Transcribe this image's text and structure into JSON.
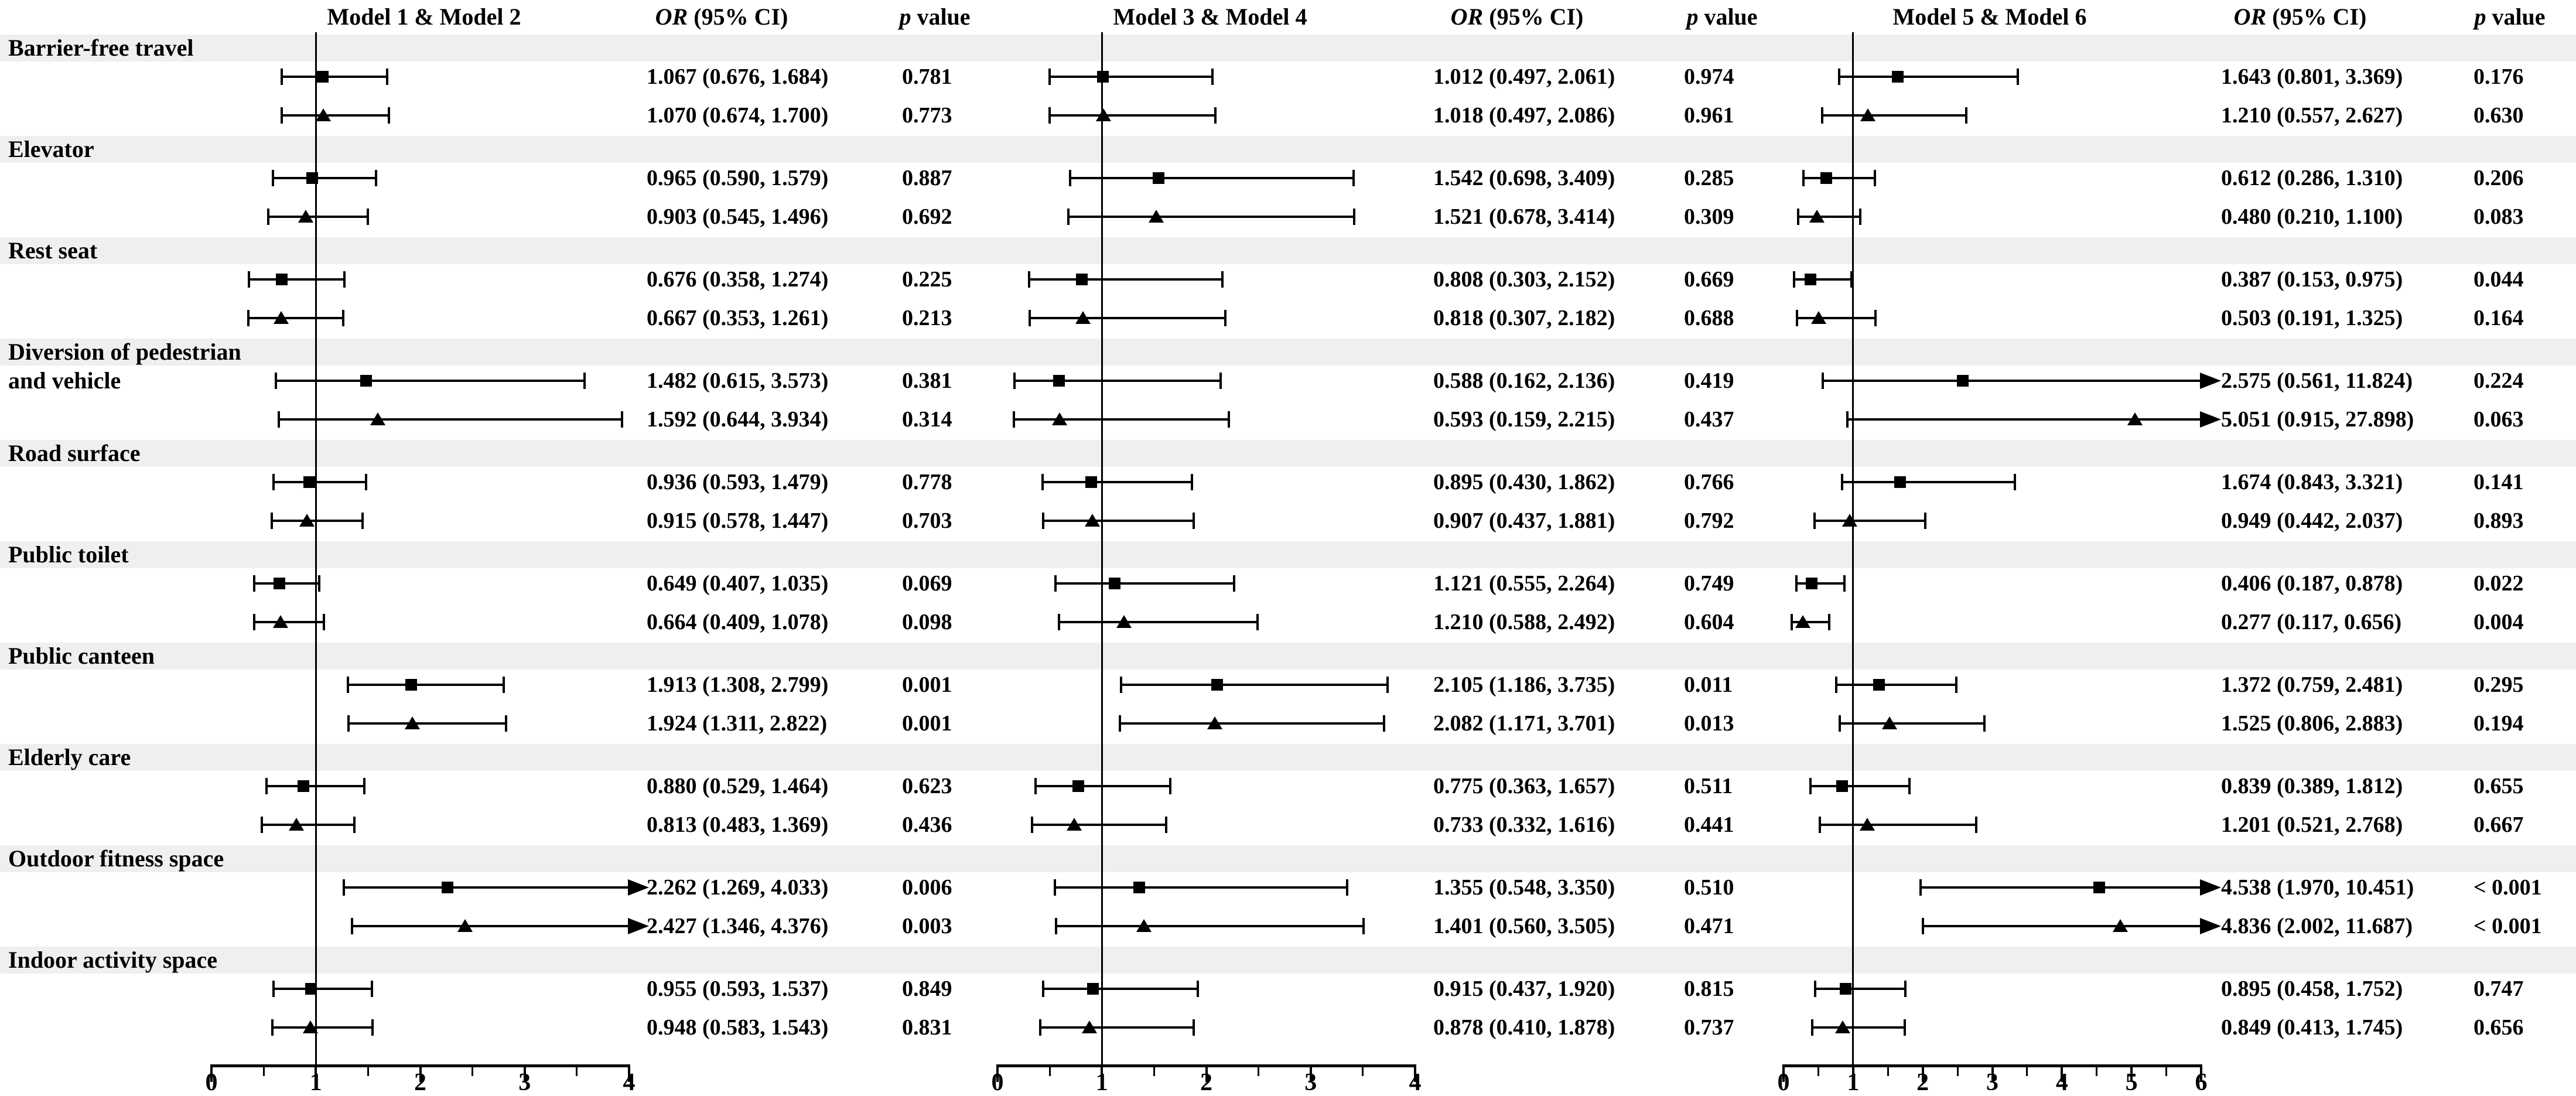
{
  "chart_data": {
    "type": "forest",
    "title": "",
    "layout": {
      "grid": false,
      "reference_line_at": 1,
      "stripe_color": "#efefef",
      "marker_row1": "square",
      "marker_row2": "triangle"
    },
    "categories": [
      {
        "name": "Barrier-free travel",
        "lines": [
          "Barrier-free travel"
        ]
      },
      {
        "name": "Elevator",
        "lines": [
          "Elevator"
        ]
      },
      {
        "name": "Rest seat",
        "lines": [
          "Rest seat"
        ]
      },
      {
        "name": "Diversion of pedestrian and vehicle",
        "lines": [
          "Diversion of pedestrian",
          "and vehicle"
        ]
      },
      {
        "name": "Road surface",
        "lines": [
          "Road surface"
        ]
      },
      {
        "name": "Public toilet",
        "lines": [
          "Public toilet"
        ]
      },
      {
        "name": "Public canteen",
        "lines": [
          "Public canteen"
        ]
      },
      {
        "name": "Elderly care",
        "lines": [
          "Elderly care"
        ]
      },
      {
        "name": "Outdoor fitness space",
        "lines": [
          "Outdoor fitness space"
        ]
      },
      {
        "name": "Indoor activity space",
        "lines": [
          "Indoor activity space"
        ]
      }
    ],
    "panels": [
      {
        "title": "Model 1 & Model 2",
        "or_header": {
          "italic": "OR",
          "rest": " (95% CI)"
        },
        "p_header": {
          "italic": "p",
          "rest": " value"
        },
        "axis": {
          "min": 0,
          "max": 4,
          "major_ticks": [
            0,
            1,
            2,
            3,
            4
          ],
          "minor_tick_step": 0.5,
          "reference_line": 1
        },
        "rows": [
          {
            "category": "Barrier-free travel",
            "marker": "square",
            "or": 1.067,
            "ci_low": 0.676,
            "ci_high": 1.684,
            "display": "1.067 (0.676, 1.684)",
            "p": "0.781"
          },
          {
            "category": "Barrier-free travel",
            "marker": "triangle",
            "or": 1.07,
            "ci_low": 0.674,
            "ci_high": 1.7,
            "display": "1.070 (0.674, 1.700)",
            "p": "0.773"
          },
          {
            "category": "Elevator",
            "marker": "square",
            "or": 0.965,
            "ci_low": 0.59,
            "ci_high": 1.579,
            "display": "0.965 (0.590, 1.579)",
            "p": "0.887"
          },
          {
            "category": "Elevator",
            "marker": "triangle",
            "or": 0.903,
            "ci_low": 0.545,
            "ci_high": 1.496,
            "display": "0.903 (0.545, 1.496)",
            "p": "0.692"
          },
          {
            "category": "Rest seat",
            "marker": "square",
            "or": 0.676,
            "ci_low": 0.358,
            "ci_high": 1.274,
            "display": "0.676 (0.358, 1.274)",
            "p": "0.225"
          },
          {
            "category": "Rest seat",
            "marker": "triangle",
            "or": 0.667,
            "ci_low": 0.353,
            "ci_high": 1.261,
            "display": "0.667 (0.353, 1.261)",
            "p": "0.213"
          },
          {
            "category": "Diversion of pedestrian and vehicle",
            "marker": "square",
            "or": 1.482,
            "ci_low": 0.615,
            "ci_high": 3.573,
            "display": "1.482 (0.615, 3.573)",
            "p": "0.381"
          },
          {
            "category": "Diversion of pedestrian and vehicle",
            "marker": "triangle",
            "or": 1.592,
            "ci_low": 0.644,
            "ci_high": 3.934,
            "display": "1.592 (0.644, 3.934)",
            "p": "0.314"
          },
          {
            "category": "Road surface",
            "marker": "square",
            "or": 0.936,
            "ci_low": 0.593,
            "ci_high": 1.479,
            "display": "0.936 (0.593, 1.479)",
            "p": "0.778"
          },
          {
            "category": "Road surface",
            "marker": "triangle",
            "or": 0.915,
            "ci_low": 0.578,
            "ci_high": 1.447,
            "display": "0.915 (0.578, 1.447)",
            "p": "0.703"
          },
          {
            "category": "Public toilet",
            "marker": "square",
            "or": 0.649,
            "ci_low": 0.407,
            "ci_high": 1.035,
            "display": "0.649 (0.407, 1.035)",
            "p": "0.069"
          },
          {
            "category": "Public toilet",
            "marker": "triangle",
            "or": 0.664,
            "ci_low": 0.409,
            "ci_high": 1.078,
            "display": "0.664 (0.409, 1.078)",
            "p": "0.098"
          },
          {
            "category": "Public canteen",
            "marker": "square",
            "or": 1.913,
            "ci_low": 1.308,
            "ci_high": 2.799,
            "display": "1.913 (1.308, 2.799)",
            "p": "0.001"
          },
          {
            "category": "Public canteen",
            "marker": "triangle",
            "or": 1.924,
            "ci_low": 1.311,
            "ci_high": 2.822,
            "display": "1.924 (1.311, 2.822)",
            "p": "0.001"
          },
          {
            "category": "Elderly care",
            "marker": "square",
            "or": 0.88,
            "ci_low": 0.529,
            "ci_high": 1.464,
            "display": "0.880 (0.529, 1.464)",
            "p": "0.623"
          },
          {
            "category": "Elderly care",
            "marker": "triangle",
            "or": 0.813,
            "ci_low": 0.483,
            "ci_high": 1.369,
            "display": "0.813 (0.483, 1.369)",
            "p": "0.436"
          },
          {
            "category": "Outdoor fitness space",
            "marker": "square",
            "or": 2.262,
            "ci_low": 1.269,
            "ci_high": 4.033,
            "display": "2.262 (1.269, 4.033)",
            "p": "0.006"
          },
          {
            "category": "Outdoor fitness space",
            "marker": "triangle",
            "or": 2.427,
            "ci_low": 1.346,
            "ci_high": 4.376,
            "display": "2.427 (1.346, 4.376)",
            "p": "0.003"
          },
          {
            "category": "Indoor activity space",
            "marker": "square",
            "or": 0.955,
            "ci_low": 0.593,
            "ci_high": 1.537,
            "display": "0.955 (0.593, 1.537)",
            "p": "0.849"
          },
          {
            "category": "Indoor activity space",
            "marker": "triangle",
            "or": 0.948,
            "ci_low": 0.583,
            "ci_high": 1.543,
            "display": "0.948 (0.583, 1.543)",
            "p": "0.831"
          }
        ]
      },
      {
        "title": "Model 3 & Model 4",
        "or_header": {
          "italic": "OR",
          "rest": " (95% CI)"
        },
        "p_header": {
          "italic": "p",
          "rest": " value"
        },
        "axis": {
          "min": 0,
          "max": 4,
          "major_ticks": [
            0,
            1,
            2,
            3,
            4
          ],
          "minor_tick_step": 0.5,
          "reference_line": 1
        },
        "rows": [
          {
            "category": "Barrier-free travel",
            "marker": "square",
            "or": 1.012,
            "ci_low": 0.497,
            "ci_high": 2.061,
            "display": "1.012 (0.497, 2.061)",
            "p": "0.974"
          },
          {
            "category": "Barrier-free travel",
            "marker": "triangle",
            "or": 1.018,
            "ci_low": 0.497,
            "ci_high": 2.086,
            "display": "1.018 (0.497, 2.086)",
            "p": "0.961"
          },
          {
            "category": "Elevator",
            "marker": "square",
            "or": 1.542,
            "ci_low": 0.698,
            "ci_high": 3.409,
            "display": "1.542 (0.698, 3.409)",
            "p": "0.285"
          },
          {
            "category": "Elevator",
            "marker": "triangle",
            "or": 1.521,
            "ci_low": 0.678,
            "ci_high": 3.414,
            "display": "1.521 (0.678, 3.414)",
            "p": "0.309"
          },
          {
            "category": "Rest seat",
            "marker": "square",
            "or": 0.808,
            "ci_low": 0.303,
            "ci_high": 2.152,
            "display": "0.808 (0.303, 2.152)",
            "p": "0.669"
          },
          {
            "category": "Rest seat",
            "marker": "triangle",
            "or": 0.818,
            "ci_low": 0.307,
            "ci_high": 2.182,
            "display": "0.818 (0.307, 2.182)",
            "p": "0.688"
          },
          {
            "category": "Diversion of pedestrian and vehicle",
            "marker": "square",
            "or": 0.588,
            "ci_low": 0.162,
            "ci_high": 2.136,
            "display": "0.588 (0.162, 2.136)",
            "p": "0.419"
          },
          {
            "category": "Diversion of pedestrian and vehicle",
            "marker": "triangle",
            "or": 0.593,
            "ci_low": 0.159,
            "ci_high": 2.215,
            "display": "0.593 (0.159, 2.215)",
            "p": "0.437"
          },
          {
            "category": "Road surface",
            "marker": "square",
            "or": 0.895,
            "ci_low": 0.43,
            "ci_high": 1.862,
            "display": "0.895 (0.430, 1.862)",
            "p": "0.766"
          },
          {
            "category": "Road surface",
            "marker": "triangle",
            "or": 0.907,
            "ci_low": 0.437,
            "ci_high": 1.881,
            "display": "0.907 (0.437, 1.881)",
            "p": "0.792"
          },
          {
            "category": "Public toilet",
            "marker": "square",
            "or": 1.121,
            "ci_low": 0.555,
            "ci_high": 2.264,
            "display": "1.121 (0.555, 2.264)",
            "p": "0.749"
          },
          {
            "category": "Public toilet",
            "marker": "triangle",
            "or": 1.21,
            "ci_low": 0.588,
            "ci_high": 2.492,
            "display": "1.210 (0.588, 2.492)",
            "p": "0.604"
          },
          {
            "category": "Public canteen",
            "marker": "square",
            "or": 2.105,
            "ci_low": 1.186,
            "ci_high": 3.735,
            "display": "2.105 (1.186, 3.735)",
            "p": "0.011"
          },
          {
            "category": "Public canteen",
            "marker": "triangle",
            "or": 2.082,
            "ci_low": 1.171,
            "ci_high": 3.701,
            "display": "2.082 (1.171, 3.701)",
            "p": "0.013"
          },
          {
            "category": "Elderly care",
            "marker": "square",
            "or": 0.775,
            "ci_low": 0.363,
            "ci_high": 1.657,
            "display": "0.775 (0.363, 1.657)",
            "p": "0.511"
          },
          {
            "category": "Elderly care",
            "marker": "triangle",
            "or": 0.733,
            "ci_low": 0.332,
            "ci_high": 1.616,
            "display": "0.733 (0.332, 1.616)",
            "p": "0.441"
          },
          {
            "category": "Outdoor fitness space",
            "marker": "square",
            "or": 1.355,
            "ci_low": 0.548,
            "ci_high": 3.35,
            "display": "1.355 (0.548, 3.350)",
            "p": "0.510"
          },
          {
            "category": "Outdoor fitness space",
            "marker": "triangle",
            "or": 1.401,
            "ci_low": 0.56,
            "ci_high": 3.505,
            "display": "1.401 (0.560, 3.505)",
            "p": "0.471"
          },
          {
            "category": "Indoor activity space",
            "marker": "square",
            "or": 0.915,
            "ci_low": 0.437,
            "ci_high": 1.92,
            "display": "0.915 (0.437, 1.920)",
            "p": "0.815"
          },
          {
            "category": "Indoor activity space",
            "marker": "triangle",
            "or": 0.878,
            "ci_low": 0.41,
            "ci_high": 1.878,
            "display": "0.878 (0.410, 1.878)",
            "p": "0.737"
          }
        ]
      },
      {
        "title": "Model 5 & Model 6",
        "or_header": {
          "italic": "OR",
          "rest": " (95% CI)"
        },
        "p_header": {
          "italic": "p",
          "rest": " value"
        },
        "axis": {
          "min": 0,
          "max": 6,
          "major_ticks": [
            0,
            1,
            2,
            3,
            4,
            5,
            6
          ],
          "minor_tick_step": 0.5,
          "reference_line": 1
        },
        "rows": [
          {
            "category": "Barrier-free travel",
            "marker": "square",
            "or": 1.643,
            "ci_low": 0.801,
            "ci_high": 3.369,
            "display": "1.643 (0.801, 3.369)",
            "p": "0.176"
          },
          {
            "category": "Barrier-free travel",
            "marker": "triangle",
            "or": 1.21,
            "ci_low": 0.557,
            "ci_high": 2.627,
            "display": "1.210 (0.557, 2.627)",
            "p": "0.630"
          },
          {
            "category": "Elevator",
            "marker": "square",
            "or": 0.612,
            "ci_low": 0.286,
            "ci_high": 1.31,
            "display": "0.612 (0.286, 1.310)",
            "p": "0.206"
          },
          {
            "category": "Elevator",
            "marker": "triangle",
            "or": 0.48,
            "ci_low": 0.21,
            "ci_high": 1.1,
            "display": "0.480 (0.210, 1.100)",
            "p": "0.083"
          },
          {
            "category": "Rest seat",
            "marker": "square",
            "or": 0.387,
            "ci_low": 0.153,
            "ci_high": 0.975,
            "display": "0.387 (0.153, 0.975)",
            "p": "0.044"
          },
          {
            "category": "Rest seat",
            "marker": "triangle",
            "or": 0.503,
            "ci_low": 0.191,
            "ci_high": 1.325,
            "display": "0.503 (0.191, 1.325)",
            "p": "0.164"
          },
          {
            "category": "Diversion of pedestrian and vehicle",
            "marker": "square",
            "or": 2.575,
            "ci_low": 0.561,
            "ci_high": 11.824,
            "display": "2.575 (0.561, 11.824)",
            "p": "0.224"
          },
          {
            "category": "Diversion of pedestrian and vehicle",
            "marker": "triangle",
            "or": 5.051,
            "ci_low": 0.915,
            "ci_high": 27.898,
            "display": "5.051 (0.915, 27.898)",
            "p": "0.063"
          },
          {
            "category": "Road surface",
            "marker": "square",
            "or": 1.674,
            "ci_low": 0.843,
            "ci_high": 3.321,
            "display": "1.674 (0.843, 3.321)",
            "p": "0.141"
          },
          {
            "category": "Road surface",
            "marker": "triangle",
            "or": 0.949,
            "ci_low": 0.442,
            "ci_high": 2.037,
            "display": "0.949 (0.442, 2.037)",
            "p": "0.893"
          },
          {
            "category": "Public toilet",
            "marker": "square",
            "or": 0.406,
            "ci_low": 0.187,
            "ci_high": 0.878,
            "display": "0.406 (0.187, 0.878)",
            "p": "0.022"
          },
          {
            "category": "Public toilet",
            "marker": "triangle",
            "or": 0.277,
            "ci_low": 0.117,
            "ci_high": 0.656,
            "display": "0.277 (0.117, 0.656)",
            "p": "0.004"
          },
          {
            "category": "Public canteen",
            "marker": "square",
            "or": 1.372,
            "ci_low": 0.759,
            "ci_high": 2.481,
            "display": "1.372 (0.759, 2.481)",
            "p": "0.295"
          },
          {
            "category": "Public canteen",
            "marker": "triangle",
            "or": 1.525,
            "ci_low": 0.806,
            "ci_high": 2.883,
            "display": "1.525 (0.806, 2.883)",
            "p": "0.194"
          },
          {
            "category": "Elderly care",
            "marker": "square",
            "or": 0.839,
            "ci_low": 0.389,
            "ci_high": 1.812,
            "display": "0.839 (0.389, 1.812)",
            "p": "0.655"
          },
          {
            "category": "Elderly care",
            "marker": "triangle",
            "or": 1.201,
            "ci_low": 0.521,
            "ci_high": 2.768,
            "display": "1.201 (0.521, 2.768)",
            "p": "0.667"
          },
          {
            "category": "Outdoor fitness space",
            "marker": "square",
            "or": 4.538,
            "ci_low": 1.97,
            "ci_high": 10.451,
            "display": "4.538 (1.970, 10.451)",
            "p": "< 0.001"
          },
          {
            "category": "Outdoor fitness space",
            "marker": "triangle",
            "or": 4.836,
            "ci_low": 2.002,
            "ci_high": 11.687,
            "display": "4.836 (2.002, 11.687)",
            "p": "< 0.001"
          },
          {
            "category": "Indoor activity space",
            "marker": "square",
            "or": 0.895,
            "ci_low": 0.458,
            "ci_high": 1.752,
            "display": "0.895 (0.458, 1.752)",
            "p": "0.747"
          },
          {
            "category": "Indoor activity space",
            "marker": "triangle",
            "or": 0.849,
            "ci_low": 0.413,
            "ci_high": 1.745,
            "display": "0.849 (0.413, 1.745)",
            "p": "0.656"
          }
        ]
      }
    ]
  }
}
